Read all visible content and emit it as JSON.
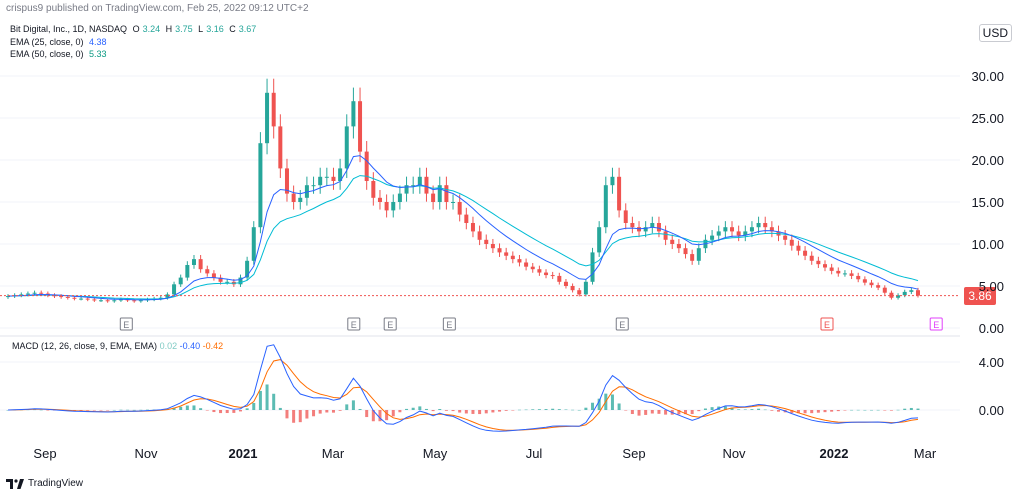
{
  "publisher": "crispus9 published on TradingView.com, Feb 25, 2022 09:12 UTC+2",
  "footer": {
    "brand": "TradingView"
  },
  "legend": {
    "symbol": "Bit Digital, Inc., 1D, NASDAQ",
    "ohlc": {
      "O": "3.24",
      "H": "3.75",
      "L": "3.16",
      "C": "3.67"
    },
    "ema25": {
      "label": "EMA (25, close, 0)",
      "value": "4.38"
    },
    "ema50": {
      "label": "EMA (50, close, 0)",
      "value": "5.33"
    },
    "macd": {
      "label": "MACD (12, 26, close, 9, EMA, EMA)",
      "hist": "0.02",
      "macd": "-0.40",
      "signal": "-0.42"
    }
  },
  "currency": "USD",
  "colors": {
    "up": "#26a69a",
    "down": "#ef5350",
    "ema25": "#2962ff",
    "ema50": "#00bcd4",
    "macd": "#2962ff",
    "signal": "#ff6d00",
    "price_line": "#ef5350",
    "earnings_future": "#e040fb"
  },
  "chart_data": [
    {
      "type": "candlestick",
      "title": "Bit Digital, Inc., 1D, NASDAQ",
      "x_ticks": [
        "Sep",
        "Nov",
        "2021",
        "Mar",
        "May",
        "Jul",
        "Sep",
        "Nov",
        "2022",
        "Mar"
      ],
      "y_ticks": [
        "0.00",
        "5.00",
        "10.00",
        "15.00",
        "20.00",
        "25.00",
        "30.00"
      ],
      "ylim": [
        0,
        33
      ],
      "last_price": "3.86",
      "close_series": [
        3.8,
        3.9,
        4.0,
        4.1,
        4.2,
        4.1,
        3.9,
        3.8,
        3.7,
        3.6,
        3.5,
        3.5,
        3.4,
        3.3,
        3.3,
        3.2,
        3.3,
        3.4,
        3.3,
        3.2,
        3.3,
        3.4,
        3.5,
        3.6,
        4.0,
        5.2,
        6.0,
        7.5,
        8.2,
        7.0,
        6.5,
        6.0,
        5.5,
        5.5,
        5.2,
        6.0,
        8.0,
        12.0,
        22.0,
        28.0,
        24.0,
        19.0,
        16.0,
        15.0,
        15.5,
        17.0,
        17.0,
        18.0,
        18.0,
        17.5,
        19.0,
        24.0,
        27.0,
        21.0,
        17.5,
        15.5,
        15.0,
        14.0,
        15.0,
        16.0,
        17.0,
        17.0,
        18.0,
        16.0,
        15.0,
        17.0,
        15.0,
        15.0,
        13.5,
        12.5,
        11.5,
        10.5,
        10.0,
        9.5,
        9.0,
        8.6,
        8.2,
        7.8,
        7.3,
        7.0,
        6.6,
        6.3,
        6.2,
        5.5,
        5.0,
        4.5,
        4.0,
        5.5,
        9.0,
        12.0,
        17.0,
        18.0,
        14.0,
        12.5,
        12.0,
        11.5,
        12.0,
        12.5,
        11.5,
        10.5,
        10.0,
        9.5,
        8.8,
        8.0,
        9.5,
        10.5,
        11.0,
        11.5,
        12.0,
        11.5,
        11.0,
        11.5,
        12.0,
        12.5,
        12.0,
        11.5,
        11.0,
        10.5,
        9.8,
        9.2,
        8.6,
        8.0,
        7.6,
        7.2,
        6.8,
        6.5,
        6.5,
        6.2,
        5.8,
        5.4,
        5.1,
        4.8,
        4.2,
        3.6,
        3.9,
        4.3,
        4.5,
        3.86
      ],
      "earnings_markers": [
        "Oct",
        "Mar",
        "Mar",
        "Apr",
        "Aug",
        "Jan",
        "Feb"
      ]
    },
    {
      "type": "line",
      "title": "MACD (12, 26, close, 9, EMA, EMA)",
      "y_ticks": [
        "0.00",
        "4.00"
      ],
      "ylim": [
        -1.8,
        5.6
      ]
    }
  ]
}
